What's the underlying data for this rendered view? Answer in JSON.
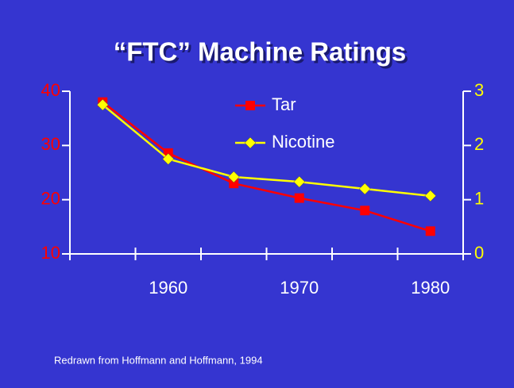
{
  "chart_data": {
    "type": "line",
    "title": "“FTC” Machine Ratings",
    "note": "Redrawn from Hoffmann and Hoffmann, 1994",
    "categories": [
      null,
      "1960",
      null,
      "1970",
      null,
      "1980"
    ],
    "series": [
      {
        "name": "Tar",
        "color": "#ff0000",
        "marker": "square",
        "values": [
          38,
          28.6,
          23,
          20.3,
          18,
          14.2
        ]
      },
      {
        "name": "Nicotine",
        "color": "#ffff00",
        "marker": "diamond",
        "axis": "y2",
        "values": [
          2.75,
          1.75,
          1.42,
          1.33,
          1.2,
          1.07
        ]
      }
    ],
    "ylim": [
      10,
      40
    ],
    "yticks": [
      10,
      20,
      30,
      40
    ],
    "ycolor": "#ff0000",
    "y2lim": [
      0,
      3
    ],
    "y2ticks": [
      0,
      1,
      2,
      3
    ],
    "y2color": "#ffff00"
  }
}
